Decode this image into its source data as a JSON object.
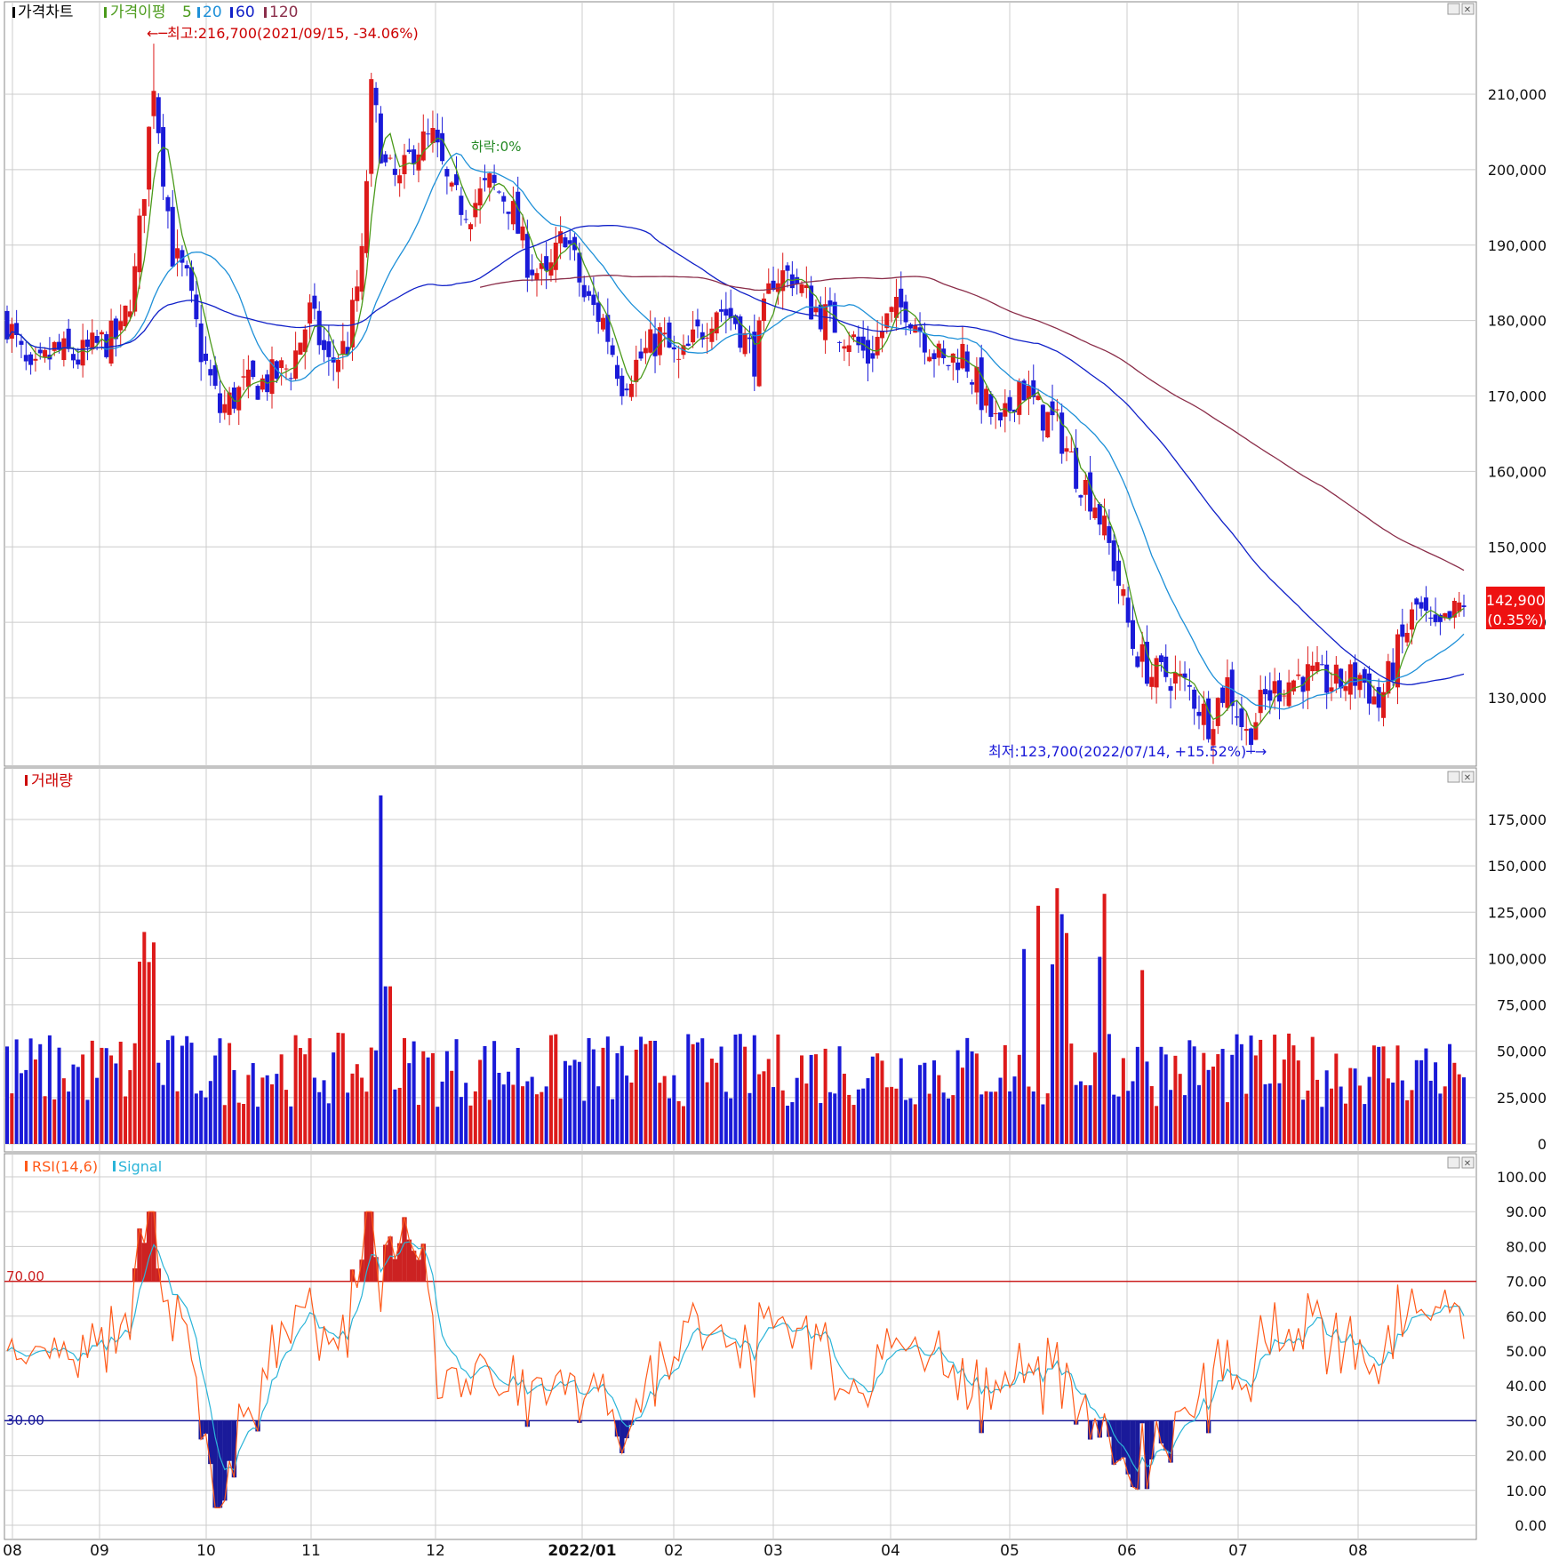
{
  "legends": {
    "price": {
      "title": "가격차트",
      "ma_title": "가격이평",
      "ma_periods": [
        "5",
        "20",
        "60",
        "120"
      ],
      "colors": {
        "title": "#000000",
        "ma5": "#4a9a1a",
        "ma20": "#1e90d8",
        "ma60": "#1020c8",
        "ma120": "#8b2e4a"
      }
    },
    "volume": {
      "title": "거래량",
      "color": "#cc0000"
    },
    "rsi": {
      "title": "RSI(14,6)",
      "signal": "Signal",
      "rsi_color": "#ff5a1a",
      "signal_color": "#2ab4d8"
    }
  },
  "annotations": {
    "high": "←─최고:216,700(2021/09/15, -34.06%)",
    "low": "최저:123,700(2022/07/14, +15.52%)─→",
    "drop": "하락:0%"
  },
  "current_price": {
    "value": "142,900",
    "change": "(0.35%)"
  },
  "rsi_levels": {
    "upper": "70.00",
    "lower": "30.00"
  },
  "colors": {
    "up": "#dd1a1a",
    "down": "#1a1ad8",
    "grid": "#cccccc",
    "frame": "#555555",
    "rsi_upper": "#cc2222",
    "rsi_lower": "#1a1a9a"
  },
  "chart_data": [
    {
      "type": "candlestick",
      "title": "가격차트",
      "ylim": [
        120000,
        220000
      ],
      "yticks": [
        "130,000",
        "140,000",
        "150,000",
        "160,000",
        "170,000",
        "180,000",
        "190,000",
        "200,000",
        "210,000"
      ],
      "ytick_values": [
        130000,
        140000,
        150000,
        160000,
        170000,
        180000,
        190000,
        200000,
        210000
      ],
      "x_period": [
        "2021-08",
        "2022-08"
      ],
      "series": [
        {
          "name": "5",
          "values": []
        },
        {
          "name": "20",
          "values": []
        },
        {
          "name": "60",
          "values": []
        },
        {
          "name": "120",
          "values": []
        }
      ],
      "key_points": {
        "high": 216700,
        "low": 123700,
        "last_close": 142900,
        "last_change_pct": 0.35
      },
      "grid": true
    },
    {
      "type": "bar",
      "title": "거래량",
      "ylim": [
        0,
        190000
      ],
      "yticks": [
        "0",
        "25,000",
        "50,000",
        "75,000",
        "100,000",
        "125,000",
        "150,000",
        "175,000"
      ],
      "ytick_values": [
        0,
        25000,
        50000,
        75000,
        100000,
        125000,
        150000,
        175000
      ],
      "grid": true
    },
    {
      "type": "line",
      "title": "RSI(14,6)",
      "ylim": [
        0,
        100
      ],
      "yticks": [
        "0.00",
        "10.00",
        "20.00",
        "30.00",
        "40.00",
        "50.00",
        "60.00",
        "70.00",
        "80.00",
        "90.00",
        "100.00"
      ],
      "ytick_values": [
        0,
        10,
        20,
        30,
        40,
        50,
        60,
        70,
        80,
        90,
        100
      ],
      "series": [
        {
          "name": "RSI(14,6)",
          "values": []
        },
        {
          "name": "Signal",
          "values": []
        }
      ],
      "reference_lines": [
        70,
        30
      ],
      "grid": true
    }
  ],
  "x_axis": {
    "labels": [
      "08",
      "09",
      "10",
      "11",
      "12",
      "2022/01",
      "02",
      "03",
      "04",
      "05",
      "06",
      "07",
      "08"
    ],
    "bold_label": "2022/01"
  },
  "window_buttons": [
    "□",
    "✕"
  ]
}
